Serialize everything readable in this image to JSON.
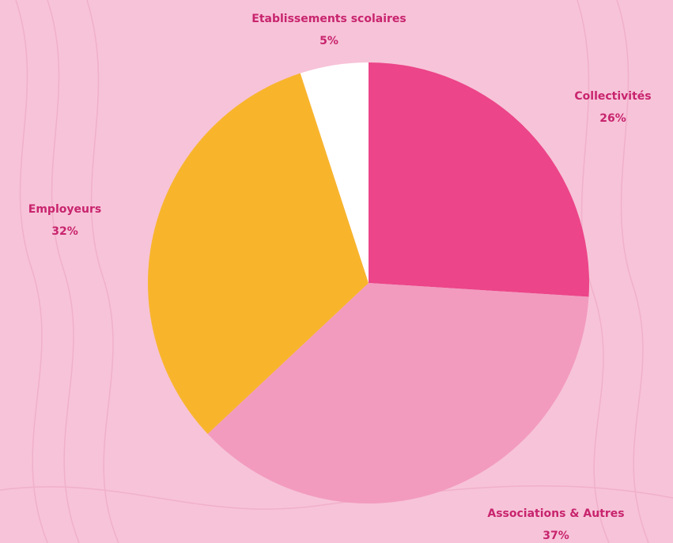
{
  "chart_data": {
    "type": "pie",
    "categories": [
      "Collectivités",
      "Associations & Autres",
      "Employeurs",
      "Etablissements scolaires"
    ],
    "values": [
      26,
      37,
      32,
      5
    ],
    "value_labels": [
      "26%",
      "37%",
      "32%",
      "5%"
    ],
    "colors": [
      "#ec4589",
      "#f29bbf",
      "#f8b52c",
      "#ffffff"
    ]
  }
}
